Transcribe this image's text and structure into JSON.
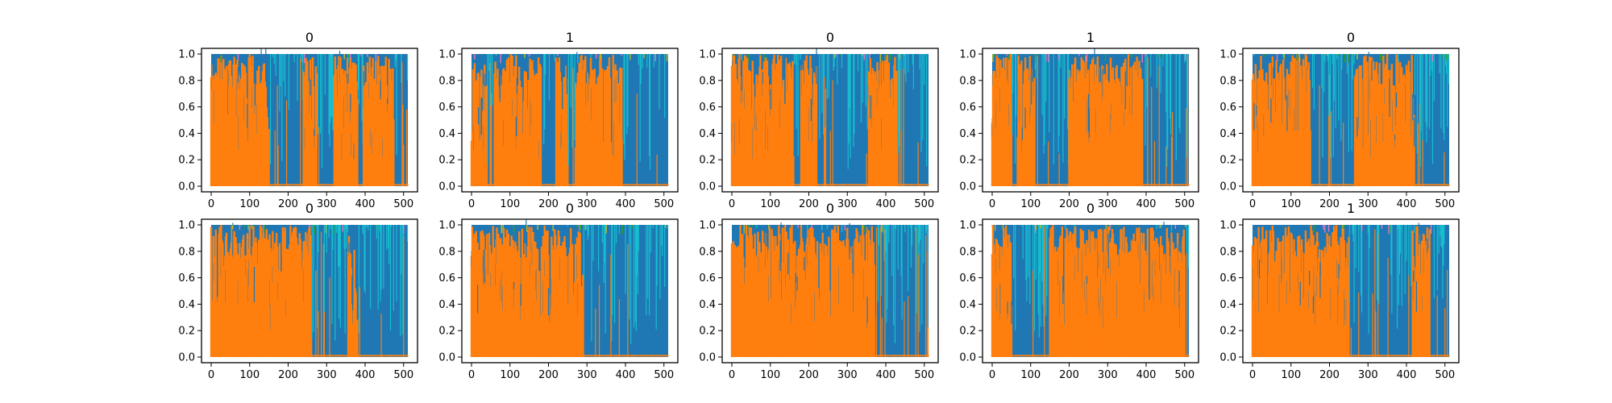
{
  "chart_data": {
    "type": "area",
    "panel_titles": [
      "0",
      "1",
      "0",
      "1",
      "0",
      "0",
      "0",
      "0",
      "0",
      "1"
    ],
    "xlim": [
      0,
      511
    ],
    "ylim": [
      0,
      1
    ],
    "xticks": [
      "0",
      "100",
      "200",
      "300",
      "400",
      "500"
    ],
    "xtick_values": [
      0,
      100,
      200,
      300,
      400,
      500
    ],
    "yticks": [
      "0.0",
      "0.2",
      "0.4",
      "0.6",
      "0.8",
      "1.0"
    ],
    "ytick_values": [
      0,
      0.2,
      0.4,
      0.6,
      0.8,
      1.0
    ],
    "colors": {
      "blue": "#1f77b4",
      "orange": "#ff7f0e",
      "cyan": "#17becf",
      "olive": "#bcbd22",
      "green": "#2ca02c",
      "pink": "#e377c2"
    },
    "panels": [
      {
        "title": "0",
        "orange_dominant_segments": [
          [
            0,
            150
          ],
          [
            240,
            275
          ],
          [
            320,
            380
          ],
          [
            395,
            475
          ]
        ]
      },
      {
        "title": "1",
        "orange_dominant_segments": [
          [
            0,
            40
          ],
          [
            60,
            180
          ],
          [
            220,
            250
          ],
          [
            270,
            390
          ]
        ]
      },
      {
        "title": "0",
        "orange_dominant_segments": [
          [
            0,
            160
          ],
          [
            180,
            220
          ],
          [
            355,
            430
          ]
        ]
      },
      {
        "title": "1",
        "orange_dominant_segments": [
          [
            0,
            50
          ],
          [
            65,
            110
          ],
          [
            200,
            390
          ]
        ]
      },
      {
        "title": "0",
        "orange_dominant_segments": [
          [
            0,
            150
          ],
          [
            265,
            420
          ]
        ]
      },
      {
        "title": "0",
        "orange_dominant_segments": [
          [
            0,
            260
          ],
          [
            355,
            380
          ]
        ]
      },
      {
        "title": "0",
        "orange_dominant_segments": [
          [
            0,
            290
          ]
        ]
      },
      {
        "title": "0",
        "orange_dominant_segments": [
          [
            0,
            370
          ]
        ]
      },
      {
        "title": "0",
        "orange_dominant_segments": [
          [
            0,
            50
          ],
          [
            150,
            500
          ]
        ]
      },
      {
        "title": "1",
        "orange_dominant_segments": [
          [
            0,
            250
          ],
          [
            415,
            460
          ]
        ]
      }
    ]
  }
}
